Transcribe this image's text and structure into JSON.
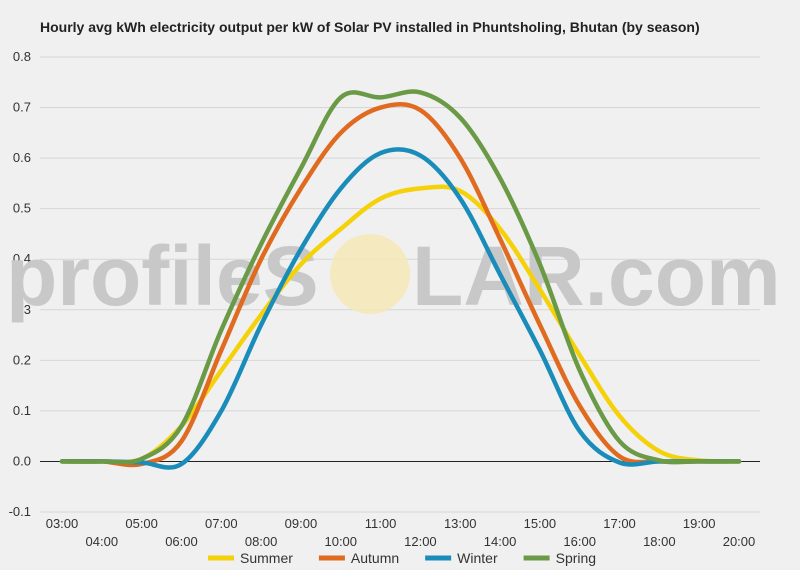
{
  "chart_data": {
    "type": "line",
    "title": "Hourly avg kWh electricity output per kW of Solar PV installed in Phuntsholing, Bhutan (by season)",
    "xlabel": "",
    "ylabel": "",
    "ylim": [
      -0.1,
      0.8
    ],
    "yticks": [
      "0.8",
      "0.7",
      "0.6",
      "0.5",
      "0.4",
      "0.3",
      "0.2",
      "0.1",
      "0.0",
      "-0.1"
    ],
    "x": [
      "03:00",
      "04:00",
      "05:00",
      "06:00",
      "07:00",
      "08:00",
      "09:00",
      "10:00",
      "11:00",
      "12:00",
      "13:00",
      "14:00",
      "15:00",
      "16:00",
      "17:00",
      "18:00",
      "19:00",
      "20:00"
    ],
    "grid": true,
    "legend_position": "bottom",
    "series": [
      {
        "name": "Summer",
        "color": "#f5d10a",
        "values": [
          0,
          0,
          0.005,
          0.07,
          0.18,
          0.29,
          0.39,
          0.46,
          0.52,
          0.54,
          0.535,
          0.46,
          0.34,
          0.21,
          0.09,
          0.02,
          0.002,
          0
        ]
      },
      {
        "name": "Autumn",
        "color": "#e06b20",
        "values": [
          0,
          0,
          -0.005,
          0.04,
          0.22,
          0.4,
          0.54,
          0.65,
          0.7,
          0.695,
          0.6,
          0.44,
          0.27,
          0.11,
          0.01,
          0,
          0,
          0
        ]
      },
      {
        "name": "Winter",
        "color": "#1a8cba",
        "values": [
          0,
          0,
          -0.002,
          -0.005,
          0.1,
          0.27,
          0.42,
          0.54,
          0.61,
          0.605,
          0.52,
          0.37,
          0.22,
          0.06,
          -0.002,
          0,
          0,
          0
        ]
      },
      {
        "name": "Spring",
        "color": "#6a9a45",
        "values": [
          0,
          0,
          0.005,
          0.07,
          0.26,
          0.43,
          0.58,
          0.72,
          0.72,
          0.73,
          0.68,
          0.56,
          0.39,
          0.18,
          0.04,
          0.002,
          0,
          0
        ]
      }
    ]
  },
  "watermark": {
    "text_left": "profileS",
    "text_right": "LAR.com"
  }
}
